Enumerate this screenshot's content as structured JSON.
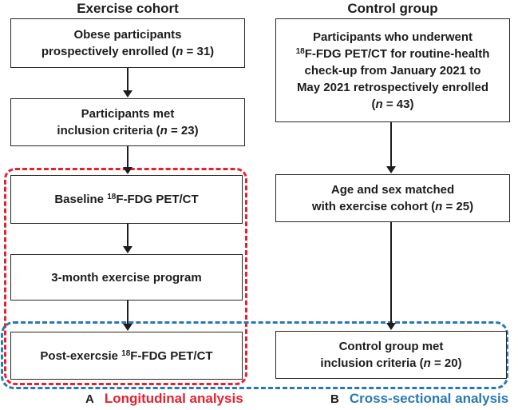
{
  "palette": {
    "red": "#e7202e",
    "blue": "#2878b5",
    "ink": "#1d1d1d"
  },
  "left_column": {
    "title": "Exercise cohort",
    "boxes": [
      {
        "name": "obese-participants-enrolled",
        "lines": [
          [
            {
              "t": "Obese participants"
            }
          ],
          [
            {
              "t": "prospectively enrolled ("
            },
            {
              "t": "n",
              "i": 1
            },
            {
              "t": " = 31)"
            }
          ]
        ]
      },
      {
        "name": "participants-met-inclusion",
        "lines": [
          [
            {
              "t": "Participants met"
            }
          ],
          [
            {
              "t": "inclusion criteria ("
            },
            {
              "t": "n",
              "i": 1
            },
            {
              "t": " = 23)"
            }
          ]
        ]
      },
      {
        "name": "baseline-pet-ct",
        "lines": [
          [
            {
              "t": "Baseline "
            },
            {
              "t": "18",
              "sup": 1
            },
            {
              "t": "F-FDG PET/CT"
            }
          ]
        ]
      },
      {
        "name": "exercise-program",
        "lines": [
          [
            {
              "t": "3-month exercise program"
            }
          ]
        ]
      },
      {
        "name": "post-exercise-pet-ct",
        "lines": [
          [
            {
              "t": "Post-exercsie "
            },
            {
              "t": "18",
              "sup": 1
            },
            {
              "t": "F-FDG PET/CT"
            }
          ]
        ]
      }
    ]
  },
  "right_column": {
    "title": "Control group",
    "boxes": [
      {
        "name": "control-participants-enrolled",
        "lines": [
          [
            {
              "t": "Participants who underwent"
            }
          ],
          [
            {
              "t": "18",
              "sup": 1
            },
            {
              "t": "F-FDG PET/CT for routine-health"
            }
          ],
          [
            {
              "t": "check-up from January 2021 to"
            }
          ],
          [
            {
              "t": "May 2021 retrospectively enrolled"
            }
          ],
          [
            {
              "t": "("
            },
            {
              "t": "n",
              "i": 1
            },
            {
              "t": " = 43)"
            }
          ]
        ]
      },
      {
        "name": "age-sex-matched",
        "lines": [
          [
            {
              "t": "Age and sex matched"
            }
          ],
          [
            {
              "t": "with exercise cohort ("
            },
            {
              "t": "n",
              "i": 1
            },
            {
              "t": " = 25)"
            }
          ]
        ]
      },
      {
        "name": "control-met-inclusion",
        "lines": [
          [
            {
              "t": "Control group met"
            }
          ],
          [
            {
              "t": "inclusion criteria ("
            },
            {
              "t": "n",
              "i": 1
            },
            {
              "t": " = 20)"
            }
          ]
        ]
      }
    ]
  },
  "annotations": {
    "panel_a_letter": "A",
    "panel_a_label": "Longitudinal analysis",
    "panel_b_letter": "B",
    "panel_b_label": "Cross-sectional analysis"
  }
}
